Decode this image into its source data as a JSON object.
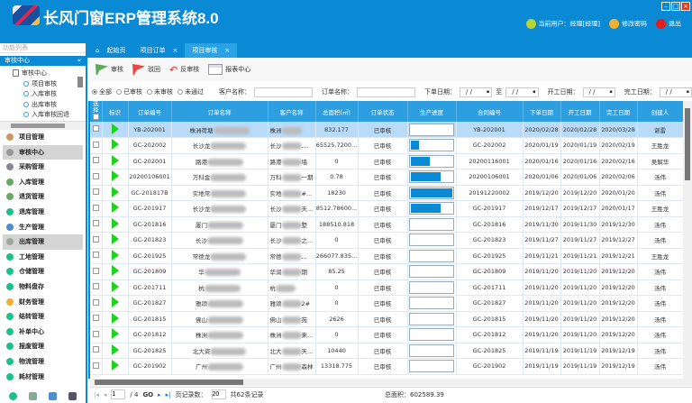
{
  "app": {
    "title": "长风门窗ERP管理系统8.0",
    "user": "当前用户：经理[经理]",
    "change_password": "修改密码",
    "logout": "退出"
  },
  "sidebar": {
    "function_list": "功能列表",
    "section": "审核中心",
    "tree": [
      {
        "label": "审核中心",
        "root": true
      },
      {
        "label": "项目审核"
      },
      {
        "label": "入库审核"
      },
      {
        "label": "出库审核"
      },
      {
        "label": "入库审核回退"
      }
    ],
    "menu": [
      "项目管理",
      "审核中心",
      "采购管理",
      "入库管理",
      "退货管理",
      "退库管理",
      "生产管理",
      "出库管理",
      "工地管理",
      "仓储管理",
      "物料盘存",
      "财务管理",
      "结转管理",
      "补单中心",
      "报废管理",
      "物流管理",
      "耗材管理"
    ],
    "selected": [
      "审核中心",
      "出库管理"
    ]
  },
  "tabs": [
    {
      "label": "起始页",
      "icon": "home-icon"
    },
    {
      "label": "项目订单",
      "closable": true
    },
    {
      "label": "项目审核",
      "closable": true,
      "active": true
    }
  ],
  "toolbar": {
    "approve": "审核",
    "reject": "驳回",
    "unapprove": "反审核",
    "report": "报表中心"
  },
  "filter": {
    "radios": [
      "全部",
      "已审核",
      "未审核",
      "未通过"
    ],
    "selected": "全部",
    "customer_label": "客户名称：",
    "order_label": "订单名称：",
    "order_date_label": "下单日期：",
    "to_label": "至",
    "start_label": "开工日期：",
    "finish_label": "完工日期：",
    "date_placeholder": "/  /"
  },
  "table": {
    "columns": [
      "选择",
      "标识",
      "订单编号",
      "订单名称",
      "客户名称",
      "总面积(㎡)",
      "订单状态",
      "生产进度",
      "合同编号",
      "下单日期",
      "开工日期",
      "完工日期",
      "创建人"
    ],
    "rows": [
      [
        "YB-202001",
        "株洲荷塘",
        [
          "株洲",
          ""
        ],
        "832.177",
        "已审核",
        0,
        "YB-202001",
        "2020/02/28",
        "2020/02/28",
        "2020/03/28",
        "谌雷"
      ],
      [
        "GC-202002",
        "长沙龙",
        [
          "长沙",
          "...."
        ],
        "65525.7200...",
        "已审核",
        20,
        "GC-202002",
        "2020/01/19",
        "2020/01/19",
        "2020/02/19",
        "王胜龙"
      ],
      [
        "GC-202001",
        "路港",
        [
          "路港",
          "墙"
        ],
        "0",
        "已审核",
        45,
        "20200116001",
        "2020/01/16",
        "2020/01/16",
        "2020/02/16",
        "吴解华"
      ],
      [
        "20200106001",
        "万科金",
        [
          "万科",
          "一期"
        ],
        "0.78",
        "已审核",
        72,
        "20200106001",
        "2020/01/06",
        "2020/01/06",
        "2020/02/06",
        "汤伟"
      ],
      [
        "GC-201817B",
        "实地常",
        [
          "实地",
          "#..."
        ],
        "18230",
        "已审核",
        100,
        "20191220002",
        "2019/12/20",
        "2019/12/20",
        "2020/01/20",
        "汤伟"
      ],
      [
        "GC-201917",
        "长沙龙",
        [
          "长沙",
          "天..."
        ],
        "8512.78600...",
        "已审核",
        72,
        "GC-201917",
        "2019/12/17",
        "2019/12/17",
        "2020/01/17",
        "王胜龙"
      ],
      [
        "GC-201816",
        "厦门",
        [
          "厦门",
          "墅"
        ],
        "188510.818",
        "已审核",
        0,
        "GC-201816",
        "2019/11/30",
        "2019/11/30",
        "2019/12/30",
        "汤伟"
      ],
      [
        "GC-201823",
        "长沙",
        [
          "长沙",
          "之..."
        ],
        "0",
        "已审核",
        0,
        "GC-201823",
        "2019/11/27",
        "2019/11/27",
        "2019/12/27",
        "汤伟"
      ],
      [
        "GC-201925",
        "常德龙",
        [
          "常德",
          "..."
        ],
        "266077.835...",
        "已审核",
        0,
        "GC-201925",
        "2019/11/21",
        "2019/11/21",
        "2019/12/21",
        "王胜龙"
      ],
      [
        "GC-201809",
        "华",
        [
          "华润",
          "期"
        ],
        "85.25",
        "已审核",
        0,
        "GC-201809",
        "2019/11/20",
        "2019/11/20",
        "2019/12/20",
        "汤伟"
      ],
      [
        "GC-201711",
        "杭",
        [
          "杭",
          ""
        ],
        "0",
        "已审核",
        0,
        "GC-201711",
        "2019/11/20",
        "2019/11/20",
        "2019/12/20",
        "汤伟"
      ],
      [
        "GC-201827",
        "雅颂",
        [
          "雅颂",
          "2#"
        ],
        "0",
        "已审核",
        0,
        "GC-201827",
        "2019/11/20",
        "2019/11/20",
        "2019/12/20",
        "汤伟"
      ],
      [
        "GC-201815",
        "佛山",
        [
          "佛山",
          "苑"
        ],
        "2626",
        "已审核",
        0,
        "GC-201815",
        "2019/11/20",
        "2019/11/20",
        "2019/12/20",
        "汤伟"
      ],
      [
        "GC-201812",
        "株洲",
        [
          "株洲",
          "来",
          "..."
        ],
        "0",
        "已审核",
        0,
        "GC-201812",
        "2019/11/20",
        "2019/11/20",
        "2019/12/20",
        "汤伟"
      ],
      [
        "GC-201825",
        "北大资",
        [
          "北大",
          "天..."
        ],
        "10440",
        "已审核",
        0,
        "GC-201825",
        "2019/11/19",
        "2019/11/19",
        "2019/12/19",
        "汤伟"
      ],
      [
        "GC-201902",
        "广州",
        [
          "广州",
          "森林"
        ],
        "13318.775",
        "已审核",
        0,
        "GC-201902",
        "2019/11/19",
        "2019/11/19",
        "2019/12/19",
        "汤伟"
      ]
    ]
  },
  "pager": {
    "current": "1",
    "total_pages": "/ 4",
    "go": "GO",
    "page_size_label": "页记录数：",
    "page_size": "20",
    "total_records": "共62条记录"
  },
  "summary": {
    "total_area": "总面积：602589.39"
  },
  "colors": {
    "brand": "#0a8ad4",
    "header": "#2d9fe0",
    "progress": "#0a8ad4",
    "flag": "#1fd21f"
  }
}
